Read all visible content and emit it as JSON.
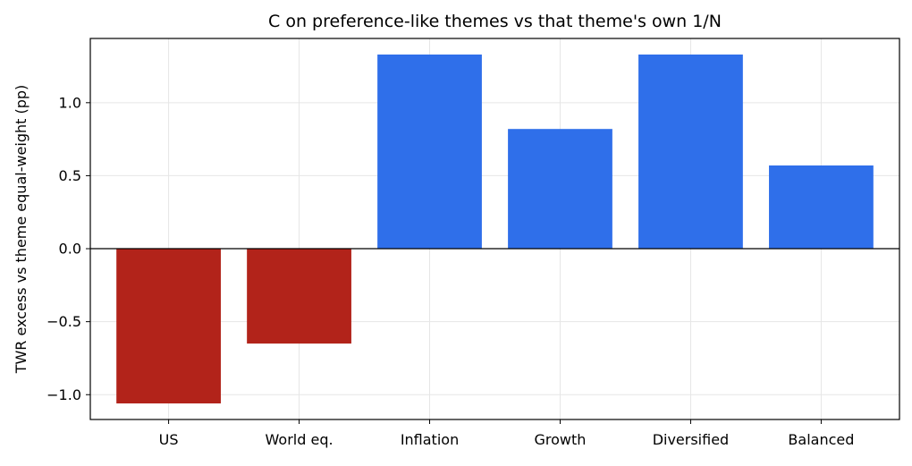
{
  "chart_data": {
    "type": "bar",
    "title": "C on preference-like themes vs that theme's own 1/N",
    "xlabel": "",
    "ylabel": "TWR excess vs theme equal-weight (pp)",
    "categories": [
      "US",
      "World eq.",
      "Inflation",
      "Growth",
      "Diversified",
      "Balanced"
    ],
    "values": [
      -1.06,
      -0.65,
      1.33,
      0.82,
      1.33,
      0.57
    ],
    "ylim": [
      -1.17,
      1.44
    ],
    "yticks": [
      -1.0,
      -0.5,
      0.0,
      0.5,
      1.0
    ],
    "ytick_labels": [
      "−1.0",
      "−0.5",
      "0.0",
      "0.5",
      "1.0"
    ],
    "grid": true,
    "zero_line": true,
    "colors": {
      "positive": "#2f6fea",
      "negative": "#b2231a",
      "grid": "#e6e6e6",
      "axis": "#000000"
    }
  }
}
